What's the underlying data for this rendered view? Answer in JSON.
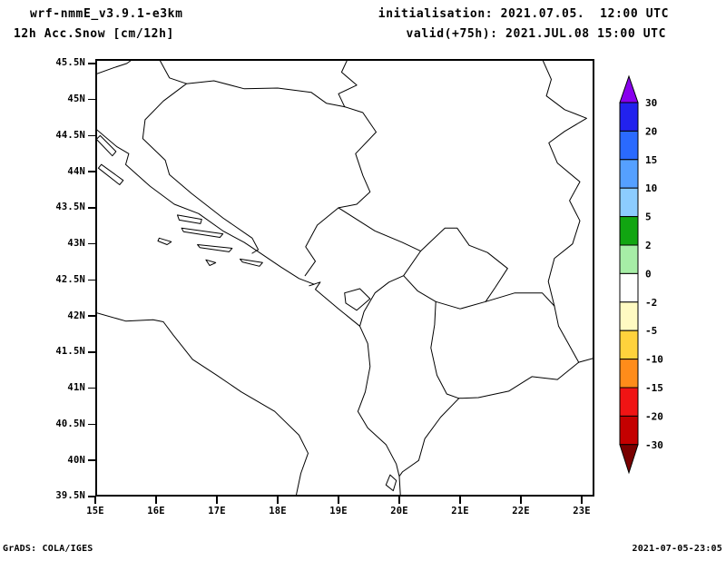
{
  "header": {
    "model_title": "wrf-nmmE_v3.9.1-e3km",
    "variable_title": "12h Acc.Snow [cm/12h]",
    "init_line": "initialisation: 2021.07.05.  12:00 UTC",
    "valid_line": "valid(+75h): 2021.JUL.08 15:00 UTC"
  },
  "footer": {
    "credit": "GrADS: COLA/IGES",
    "timestamp": "2021-07-05-23:05"
  },
  "chart_data": {
    "type": "heatmap",
    "title": "12h Acc.Snow [cm/12h]",
    "subtitle": "wrf-nmmE_v3.9.1-e3km",
    "init_time": "initialisation: 2021.07.05.  12:00 UTC",
    "valid_time": "valid(+75h): 2021.JUL.08 15:00 UTC",
    "domain": {
      "lon_min": "15E",
      "lon_max": "23E",
      "lat_min": "39.5N",
      "lat_max": "45.5N"
    },
    "x_axis": {
      "tick_labels": [
        "15E",
        "16E",
        "17E",
        "18E",
        "19E",
        "20E",
        "21E",
        "22E",
        "23E"
      ],
      "values": [
        15,
        16,
        17,
        18,
        19,
        20,
        21,
        22,
        23
      ]
    },
    "y_axis": {
      "tick_labels": [
        "45.5N",
        "45N",
        "44.5N",
        "44N",
        "43.5N",
        "43N",
        "42.5N",
        "42N",
        "41.5N",
        "41N",
        "40.5N",
        "40N",
        "39.5N"
      ],
      "values": [
        45.5,
        45,
        44.5,
        44,
        43.5,
        43,
        42.5,
        42,
        41.5,
        41,
        40.5,
        40,
        39.5
      ]
    },
    "colorbar": {
      "unit": "cm/12h",
      "labels": [
        "30",
        "20",
        "15",
        "10",
        "5",
        "2",
        "0",
        "-2",
        "-5",
        "-10",
        "-15",
        "-20",
        "-30"
      ],
      "boundary_values": [
        30,
        20,
        15,
        10,
        5,
        2,
        0,
        -2,
        -5,
        -10,
        -15,
        -20,
        -30
      ],
      "colors_top_to_bottom": [
        "#8800ee",
        "#2222ee",
        "#2a6aff",
        "#55a0ff",
        "#8cccff",
        "#11a511",
        "#a6eda6",
        "#ffffff",
        "#fffac2",
        "#ffd23c",
        "#ff8c1a",
        "#f01414",
        "#c40000",
        "#7a0000"
      ]
    },
    "field_summary": "No snow accumulation shaded anywhere in the domain; entire map lies in the white 0 band",
    "grid_visible": false
  }
}
